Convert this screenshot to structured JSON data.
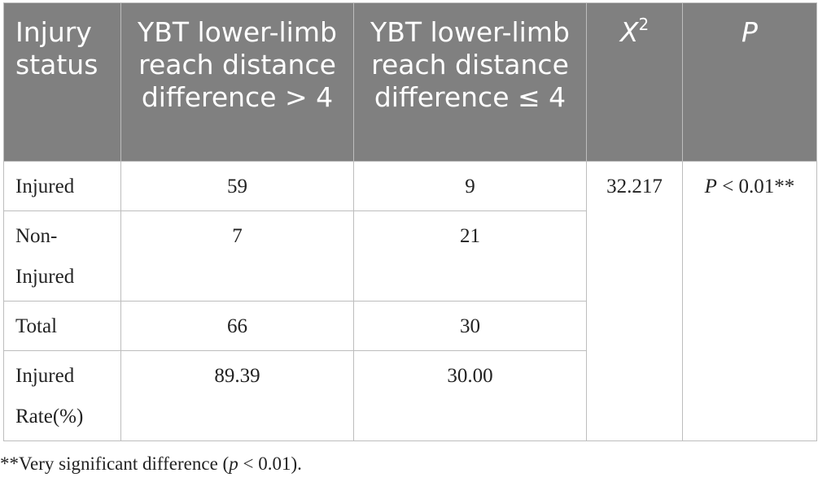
{
  "table": {
    "header": {
      "injury_status": "Injury status",
      "col_gt": "YBT lower-limb reach distance difference > 4",
      "col_le": "YBT lower-limb reach distance difference ≤ 4",
      "chi": {
        "base": "X",
        "sup": "2"
      },
      "p": "P"
    },
    "rows": [
      [
        "Injured",
        "59",
        "9"
      ],
      [
        "Non-Injured",
        "7",
        "21"
      ],
      [
        "Total",
        "66",
        "30"
      ],
      [
        "Injured Rate(%)",
        "89.39",
        "30.00"
      ]
    ],
    "chi_square": "32.217",
    "p_value": {
      "italic": "P",
      "text": " < 0.01**"
    }
  },
  "footnote": {
    "before": "**Very significant difference (",
    "italic": "p",
    "after": " < 0.01)."
  }
}
